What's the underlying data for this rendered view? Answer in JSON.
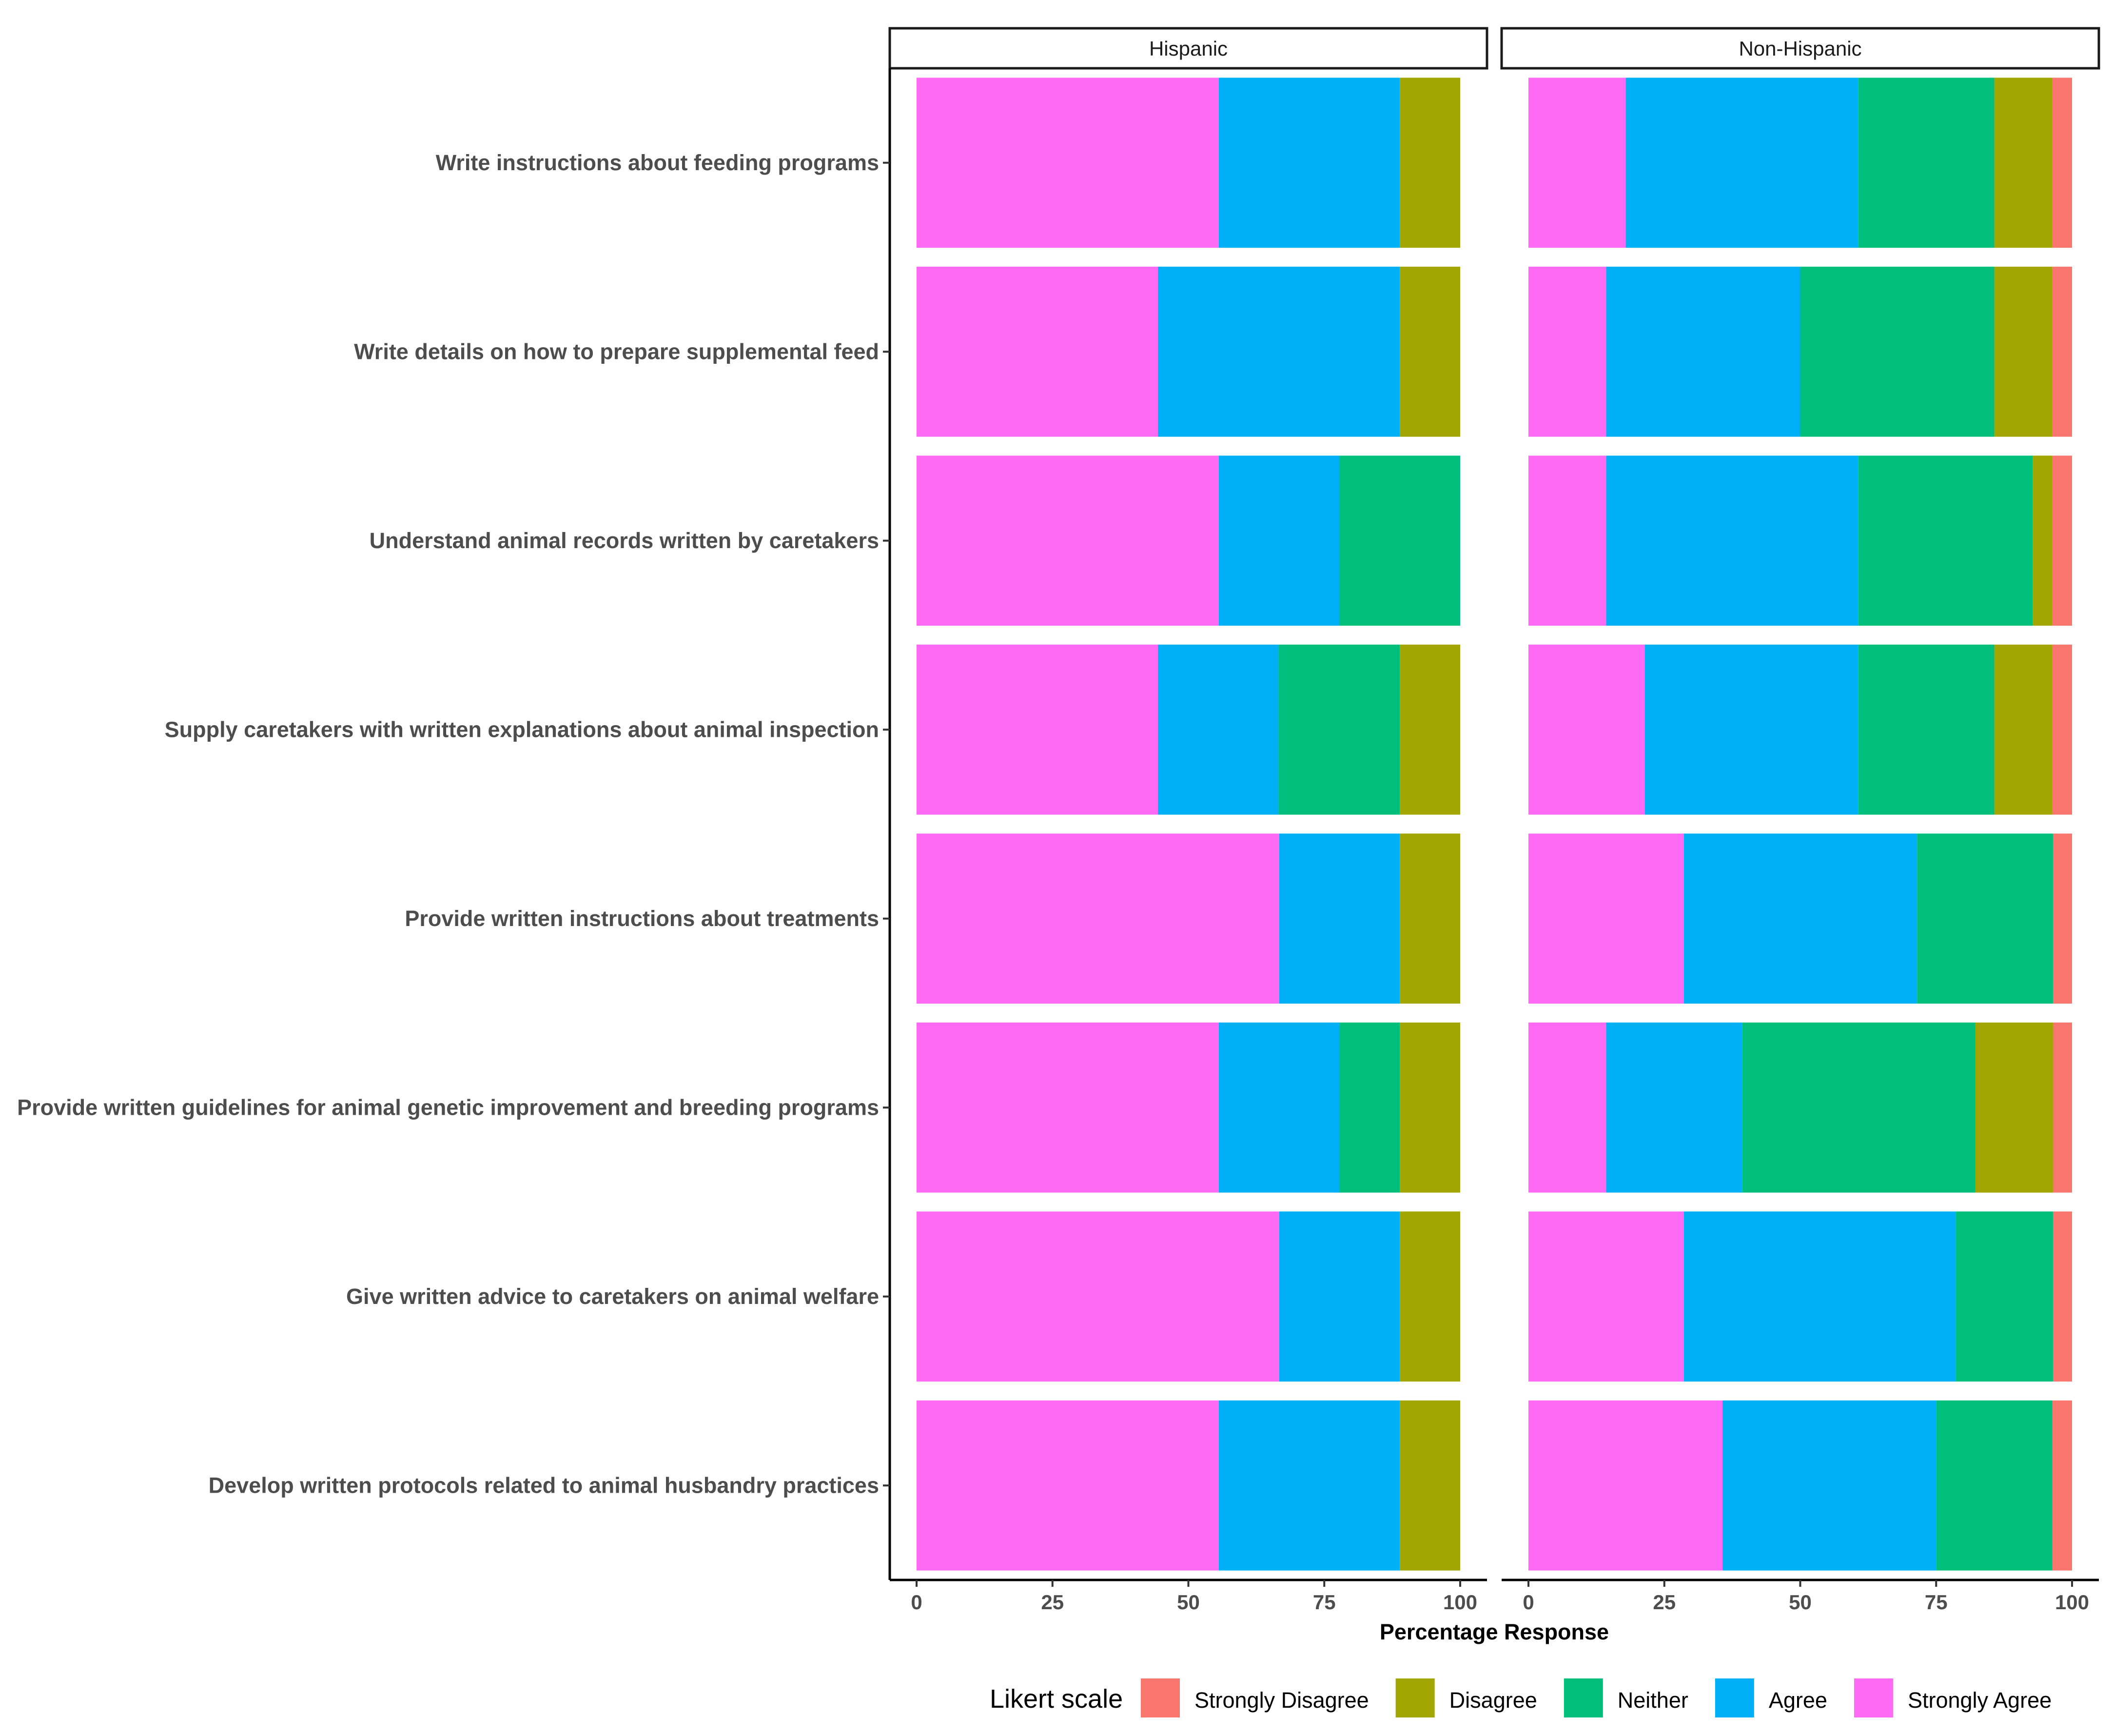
{
  "chart_data": {
    "type": "bar",
    "orientation": "horizontal",
    "stacked": true,
    "title": "",
    "xlabel": "Percentage Response",
    "ylabel": "",
    "xlim": [
      0,
      100
    ],
    "x_ticks": [
      "0",
      "25",
      "50",
      "75",
      "100"
    ],
    "categories": [
      "Write instructions about feeding programs",
      "Write details on how to prepare supplemental feed",
      "Understand animal records written by caretakers",
      "Supply caretakers with written explanations about animal inspection",
      "Provide written instructions about treatments",
      "Provide written guidelines for animal genetic improvement and breeding programs",
      "Give written advice to caretakers on animal welfare",
      "Develop written protocols related to animal husbandry practices"
    ],
    "legend": {
      "title": "Likert scale",
      "position": "bottom",
      "entries": [
        "Strongly Disagree",
        "Disagree",
        "Neither",
        "Agree",
        "Strongly Agree"
      ]
    },
    "colors": {
      "Strongly Agree": "#ff6af5",
      "Agree": "#00b0f6",
      "Neither": "#00bf7d",
      "Disagree": "#a3a500",
      "Strongly Disagree": "#f8766d"
    },
    "stack_order": [
      "Strongly Agree",
      "Agree",
      "Neither",
      "Disagree",
      "Strongly Disagree"
    ],
    "panels": [
      {
        "name": "Hispanic",
        "series": [
          {
            "name": "Strongly Agree",
            "values": [
              55.6,
              44.4,
              55.6,
              44.4,
              66.7,
              55.6,
              66.7,
              55.6
            ]
          },
          {
            "name": "Agree",
            "values": [
              33.3,
              44.5,
              22.2,
              22.2,
              22.2,
              22.2,
              22.2,
              33.3
            ]
          },
          {
            "name": "Neither",
            "values": [
              0,
              0,
              22.2,
              22.3,
              0,
              11.1,
              0,
              0
            ]
          },
          {
            "name": "Disagree",
            "values": [
              11.1,
              11.1,
              0,
              11.1,
              11.1,
              11.1,
              11.1,
              11.1
            ]
          },
          {
            "name": "Strongly Disagree",
            "values": [
              0,
              0,
              0,
              0,
              0,
              0,
              0,
              0
            ]
          }
        ]
      },
      {
        "name": "Non-Hispanic",
        "series": [
          {
            "name": "Strongly Agree",
            "values": [
              17.9,
              14.3,
              14.3,
              21.4,
              28.6,
              14.3,
              28.6,
              35.7
            ]
          },
          {
            "name": "Agree",
            "values": [
              42.8,
              35.7,
              46.4,
              39.3,
              42.9,
              25.0,
              50.0,
              39.3
            ]
          },
          {
            "name": "Neither",
            "values": [
              25.0,
              35.7,
              32.1,
              25.0,
              25.0,
              42.9,
              17.9,
              21.4
            ]
          },
          {
            "name": "Disagree",
            "values": [
              10.7,
              10.7,
              3.6,
              10.7,
              0,
              14.3,
              0,
              0
            ]
          },
          {
            "name": "Strongly Disagree",
            "values": [
              3.6,
              3.6,
              3.6,
              3.6,
              3.5,
              3.5,
              3.5,
              3.6
            ]
          }
        ]
      }
    ]
  }
}
